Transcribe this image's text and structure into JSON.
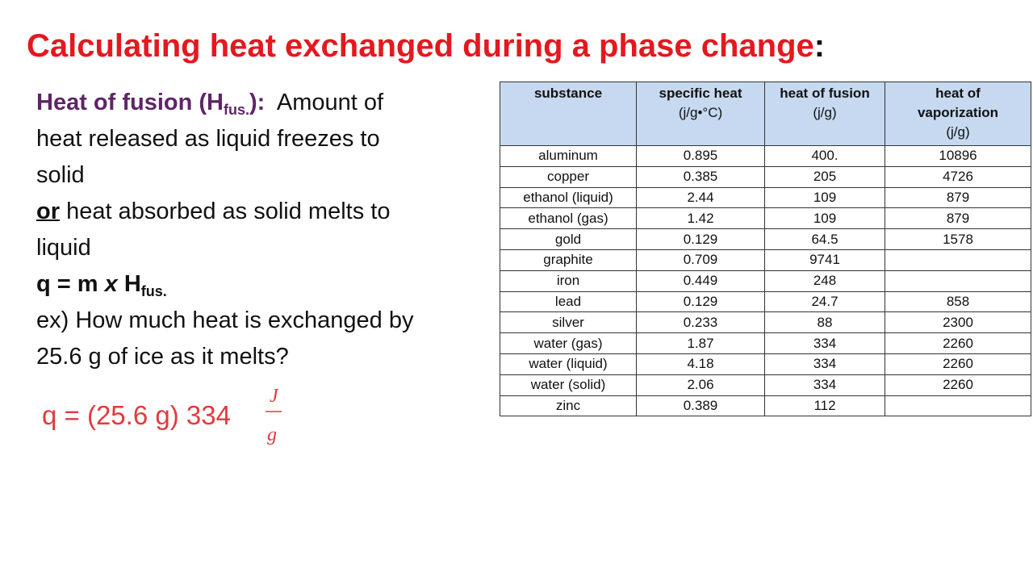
{
  "title": {
    "text": "Calculating heat exchanged during a phase change",
    "colon": ":"
  },
  "definition": {
    "term": "Heat of fusion (H",
    "term_subscript": "fus.",
    "term_close": "):",
    "lines": [
      "Amount of",
      "heat released as liquid freezes to",
      "solid"
    ]
  },
  "alternative": {
    "keyword": "or",
    "lines": [
      "heat absorbed as solid melts to",
      "liquid"
    ]
  },
  "formula": {
    "start": "q = m",
    "operator": "x",
    "symbol": "H",
    "subscript": "fus."
  },
  "example": {
    "lines": [
      "ex) How much heat is exchanged by",
      "25.6 g of ice as it melts?"
    ]
  },
  "work": {
    "text": "q = (25.6 g) 334",
    "numerator": "J",
    "denominator": "g"
  },
  "table": {
    "header": [
      {
        "name": "substance"
      },
      {
        "name": "specific heat",
        "unit": "(j/g•°C)"
      },
      {
        "name": "heat of fusion",
        "unit": "(j/g)"
      },
      {
        "name": "heat of vaporization",
        "unit": "(j/g)"
      }
    ],
    "rows": [
      [
        "aluminum",
        "0.895",
        "400.",
        "10896"
      ],
      [
        "copper",
        "0.385",
        "205",
        "4726"
      ],
      [
        "ethanol (liquid)",
        "2.44",
        "109",
        "879"
      ],
      [
        "ethanol (gas)",
        "1.42",
        "109",
        "879"
      ],
      [
        "gold",
        "0.129",
        "64.5",
        "1578"
      ],
      [
        "graphite",
        "0.709",
        "9741",
        null
      ],
      [
        "iron",
        "0.449",
        "248",
        null
      ],
      [
        "lead",
        "0.129",
        "24.7",
        "858"
      ],
      [
        "silver",
        "0.233",
        "88",
        "2300"
      ],
      [
        "water (gas)",
        "1.87",
        "334",
        "2260"
      ],
      [
        "water (liquid)",
        "4.18",
        "334",
        "2260"
      ],
      [
        "water (solid)",
        "2.06",
        "334",
        "2260"
      ],
      [
        "zinc",
        "0.389",
        "112",
        null
      ]
    ]
  }
}
